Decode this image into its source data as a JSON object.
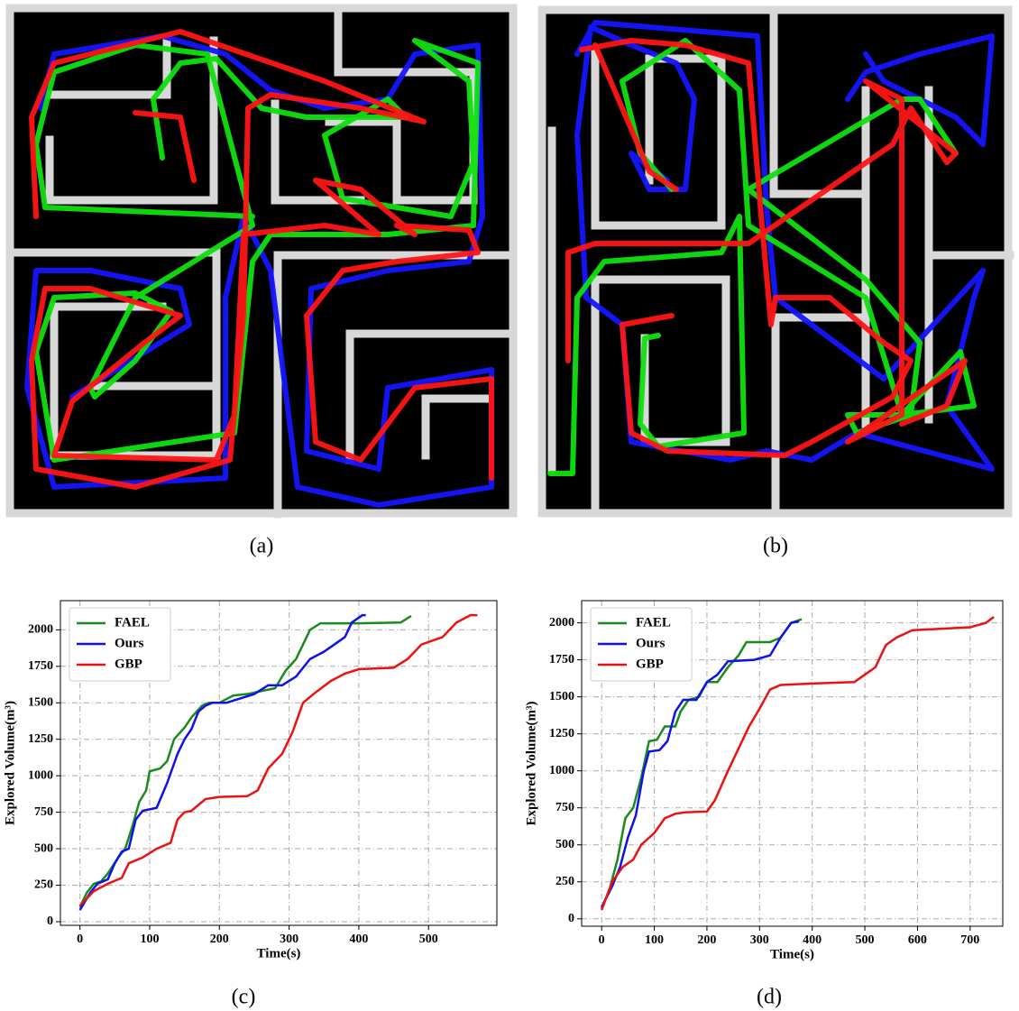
{
  "figure_panels": [
    {
      "caption": "(a)"
    },
    {
      "caption": "(b)"
    }
  ],
  "chart_data": [
    {
      "type": "line",
      "caption": "(c)",
      "xlabel": "Time(s)",
      "ylabel": "Explored Volume(m³)",
      "xlim": [
        -28,
        598
      ],
      "ylim": [
        -25,
        2200
      ],
      "xticks": [
        0,
        100,
        200,
        300,
        400,
        500
      ],
      "yticks": [
        0,
        250,
        500,
        750,
        1000,
        1250,
        1500,
        1750,
        2000
      ],
      "grid": true,
      "legend": "upper-left",
      "series": [
        {
          "name": "FAEL",
          "color": "#1a8a1a",
          "x": [
            0,
            10,
            20,
            30,
            40,
            55,
            65,
            75,
            85,
            95,
            100,
            115,
            125,
            135,
            150,
            160,
            175,
            185,
            200,
            220,
            240,
            260,
            280,
            295,
            310,
            320,
            330,
            345,
            400,
            460,
            475
          ],
          "values": [
            100,
            200,
            260,
            275,
            330,
            440,
            500,
            650,
            820,
            900,
            1030,
            1050,
            1100,
            1250,
            1330,
            1400,
            1480,
            1500,
            1500,
            1550,
            1560,
            1580,
            1600,
            1720,
            1800,
            1900,
            2000,
            2045,
            2045,
            2050,
            2095
          ]
        },
        {
          "name": "Ours",
          "color": "#1010ee",
          "x": [
            0,
            15,
            25,
            40,
            50,
            60,
            70,
            80,
            90,
            100,
            110,
            125,
            140,
            150,
            160,
            170,
            180,
            190,
            210,
            230,
            250,
            270,
            290,
            310,
            330,
            350,
            365,
            380,
            390,
            405,
            410
          ],
          "values": [
            80,
            200,
            260,
            290,
            400,
            480,
            500,
            700,
            760,
            770,
            780,
            950,
            1150,
            1250,
            1320,
            1440,
            1480,
            1500,
            1500,
            1530,
            1560,
            1620,
            1620,
            1680,
            1800,
            1850,
            1900,
            1950,
            2050,
            2100,
            2100
          ]
        },
        {
          "name": "GBP",
          "color": "#ee1010",
          "x": [
            0,
            20,
            40,
            60,
            70,
            90,
            110,
            130,
            140,
            150,
            160,
            180,
            200,
            240,
            255,
            270,
            290,
            305,
            320,
            335,
            360,
            380,
            400,
            450,
            470,
            490,
            520,
            540,
            560,
            570
          ],
          "values": [
            110,
            210,
            260,
            300,
            400,
            440,
            500,
            540,
            700,
            750,
            760,
            840,
            855,
            860,
            900,
            1050,
            1150,
            1300,
            1500,
            1560,
            1650,
            1700,
            1730,
            1740,
            1800,
            1900,
            1950,
            2050,
            2100,
            2100
          ]
        }
      ]
    },
    {
      "type": "line",
      "caption": "(d)",
      "xlabel": "Time(s)",
      "ylabel": "Explored Volume(m³)",
      "xlim": [
        -38,
        762
      ],
      "ylim": [
        -50,
        2150
      ],
      "xticks": [
        0,
        100,
        200,
        300,
        400,
        500,
        600,
        700
      ],
      "yticks": [
        0,
        250,
        500,
        750,
        1000,
        1250,
        1500,
        1750,
        2000
      ],
      "grid": true,
      "legend": "upper-left",
      "series": [
        {
          "name": "FAEL",
          "color": "#1a8a1a",
          "x": [
            0,
            15,
            30,
            45,
            60,
            75,
            90,
            105,
            120,
            140,
            150,
            165,
            185,
            200,
            220,
            240,
            260,
            275,
            320,
            340,
            360,
            380
          ],
          "values": [
            70,
            200,
            400,
            680,
            750,
            950,
            1200,
            1210,
            1300,
            1300,
            1400,
            1480,
            1500,
            1600,
            1600,
            1700,
            1780,
            1870,
            1870,
            1900,
            2000,
            2025
          ]
        },
        {
          "name": "Ours",
          "color": "#1010ee",
          "x": [
            0,
            20,
            35,
            50,
            65,
            80,
            90,
            110,
            125,
            140,
            155,
            180,
            200,
            220,
            240,
            290,
            320,
            340,
            360,
            375
          ],
          "values": [
            80,
            220,
            350,
            550,
            700,
            1000,
            1130,
            1140,
            1200,
            1400,
            1480,
            1480,
            1600,
            1650,
            1740,
            1750,
            1780,
            1900,
            2000,
            2010
          ]
        },
        {
          "name": "GBP",
          "color": "#ee1010",
          "x": [
            0,
            20,
            40,
            60,
            75,
            100,
            120,
            140,
            160,
            200,
            215,
            240,
            260,
            280,
            300,
            320,
            340,
            400,
            480,
            500,
            520,
            540,
            560,
            590,
            700,
            730,
            745
          ],
          "values": [
            60,
            250,
            350,
            400,
            500,
            580,
            680,
            710,
            720,
            725,
            800,
            1000,
            1150,
            1300,
            1420,
            1550,
            1580,
            1590,
            1600,
            1650,
            1700,
            1850,
            1900,
            1950,
            1970,
            2000,
            2040
          ]
        }
      ]
    }
  ]
}
